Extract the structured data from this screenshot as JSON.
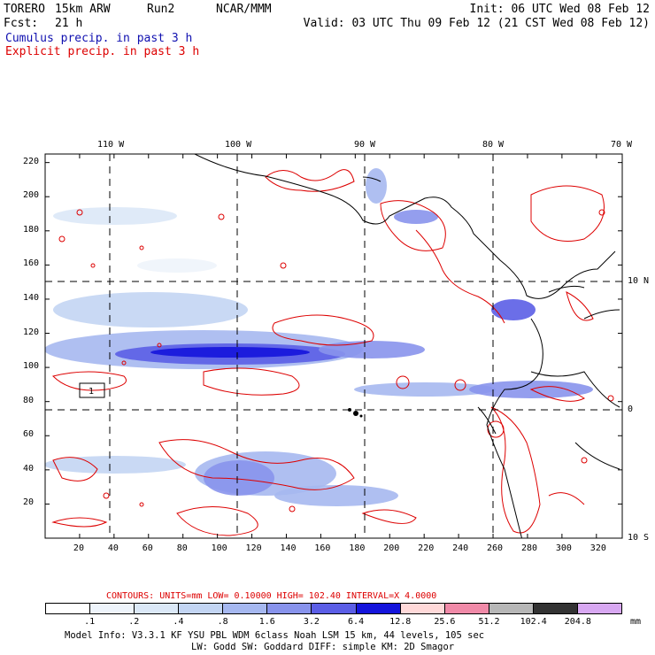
{
  "header": {
    "model": "TORERO",
    "resolution": "15km ARW",
    "run": "Run2",
    "center": "NCAR/MMM",
    "init": "Init: 06 UTC Wed 08 Feb 12",
    "fcst_label": "Fcst:",
    "fcst_hours": "21 h",
    "valid": "Valid: 03 UTC Thu 09 Feb 12 (21 CST Wed 08 Feb 12)"
  },
  "fields": [
    {
      "label": "Cumulus precip. in past 3 h",
      "color": "#1010b0"
    },
    {
      "label": "Explicit precip. in past 3 h",
      "color": "#dd0000"
    }
  ],
  "map": {
    "lon_labels": [
      "110 W",
      "100 W",
      "90 W",
      "80 W",
      "70 W"
    ],
    "lat_labels": [
      "10 N",
      "0",
      "10 S"
    ],
    "x_ticks": [
      "20",
      "40",
      "60",
      "80",
      "100",
      "120",
      "140",
      "160",
      "180",
      "200",
      "220",
      "240",
      "260",
      "280",
      "300",
      "320"
    ],
    "y_ticks": [
      "220",
      "200",
      "180",
      "160",
      "140",
      "120",
      "100",
      "80",
      "60",
      "40",
      "20"
    ],
    "box_label": "1",
    "lon_range": [
      -115,
      -70
    ],
    "lat_range": [
      -10,
      20
    ],
    "grid_range_x": [
      0,
      335
    ],
    "grid_range_y": [
      0,
      225
    ]
  },
  "contours": {
    "units_text": "CONTOURS:  UNITS=mm  LOW= 0.10000     HIGH=  102.40     INTERVAL=X  4.0000",
    "color": "#dd0000"
  },
  "colorbar": {
    "labels": [
      ".1",
      ".2",
      ".4",
      ".8",
      "1.6",
      "3.2",
      "6.4",
      "12.8",
      "25.6",
      "51.2",
      "102.4",
      "204.8"
    ],
    "unit": "mm",
    "colors": [
      "#ffffff",
      "#eef4fb",
      "#dbe8f7",
      "#c3d5f3",
      "#a6b8f0",
      "#8893ec",
      "#5b5ee6",
      "#1414dc",
      "#ffd9d9",
      "#f08aa8",
      "#b7b7b7",
      "#333333",
      "#d8a8f2"
    ]
  },
  "footer": {
    "line1": "Model Info: V3.3.1   KF     YSU PBL  WDM 6class  Noah LSM  15 km,   44 levels,  105 sec",
    "line2": "LW: Godd  SW: Goddard DIFF: simple KM: 2D Smagor"
  }
}
